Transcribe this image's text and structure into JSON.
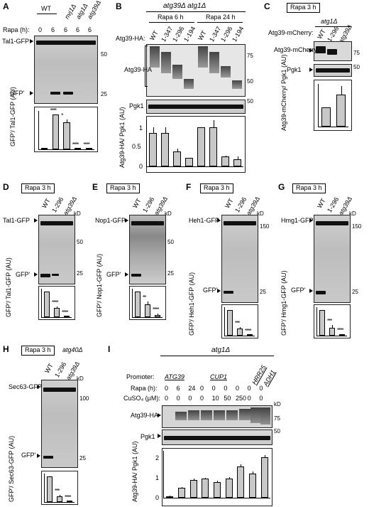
{
  "panels": {
    "A": {
      "label": "A",
      "lanes": [
        "WT",
        "nvj1Δ",
        "atg1Δ",
        "atg39Δ"
      ],
      "rapa_label": "Rapa (h):",
      "rapa": [
        "0",
        "6",
        "6",
        "6",
        "6"
      ],
      "band_top": "Tal1-GFP",
      "band_bottom": "GFP'",
      "mw": [
        "50",
        "25"
      ],
      "ylabel": "GFP'/ Tal1-GFP (AU)",
      "stars": [
        "****",
        "*",
        "****",
        "****"
      ],
      "chart_data": {
        "type": "bar",
        "categories": [
          "WT 0",
          "WT 6",
          "nvj1Δ 6",
          "atg1Δ 6",
          "atg39Δ 6"
        ],
        "values": [
          0.0,
          1.0,
          0.78,
          0.02,
          0.02
        ],
        "errors": [
          0,
          0,
          0.07,
          0,
          0
        ],
        "ylim": [
          0,
          1.1
        ]
      }
    },
    "B": {
      "label": "B",
      "title": "atg39Δ atg1Δ",
      "groups": [
        "Rapa 6 h",
        "Rapa 24 h"
      ],
      "lanes": [
        "WT",
        "1-347",
        "1-296",
        "1-194",
        "WT",
        "1-347",
        "1-296",
        "1-194"
      ],
      "row_label": "Atg39-HA:",
      "band_main": "Atg39-HA",
      "band_pgk": "Pgk1",
      "mw": [
        "75",
        "50",
        "50"
      ],
      "ylabel": "Atg39-HA/ Pgk1 (AU)",
      "yticks": [
        "0",
        "0.5",
        "1"
      ],
      "chart_data": {
        "type": "bar",
        "categories": [
          "WT 6h",
          "1-347 6h",
          "1-296 6h",
          "1-194 6h",
          "WT 24h",
          "1-347 24h",
          "1-296 24h",
          "1-194 24h"
        ],
        "values": [
          0.85,
          0.85,
          0.38,
          0.22,
          1.0,
          1.0,
          0.25,
          0.18
        ],
        "errors": [
          0.15,
          0.15,
          0.08,
          0,
          0,
          0.18,
          0.03,
          0.08
        ],
        "ylim": [
          0,
          1.2
        ]
      }
    },
    "C": {
      "label": "C",
      "rapa": "Rapa 3 h",
      "strain": "atg1Δ",
      "row_label": "Atg39-mCherry:",
      "lanes": [
        "WT",
        "1-296",
        "atg39Δ"
      ],
      "band_main": "Atg39-mCherry",
      "band_pgk": "Pgk1",
      "mw": [
        "75",
        "50"
      ],
      "ylabel": "Atg39-mCherry/ Pgk1 (AU)",
      "chart_data": {
        "type": "bar",
        "categories": [
          "WT",
          "1-296"
        ],
        "values": [
          1.0,
          1.65
        ],
        "errors": [
          0,
          0.45
        ],
        "ylim": [
          0,
          2.2
        ]
      }
    },
    "D": {
      "label": "D",
      "rapa": "Rapa 3 h",
      "lanes": [
        "WT",
        "1-296",
        "atg39Δ"
      ],
      "kd": "kD",
      "band_top": "Tal1-GFP",
      "band_bottom": "GFP'",
      "mw": [
        "50",
        "25"
      ],
      "ylabel": "GFP'/ Tal1-GFP (AU)",
      "stars": [
        "****",
        "****"
      ],
      "chart_data": {
        "type": "bar",
        "categories": [
          "WT",
          "1-296",
          "atg39Δ"
        ],
        "values": [
          1.0,
          0.35,
          0.03
        ],
        "errors": [
          0,
          0.05,
          0
        ],
        "ylim": [
          0,
          1.1
        ]
      }
    },
    "E": {
      "label": "E",
      "rapa": "Rapa 3 h",
      "lanes": [
        "WT",
        "1-296",
        "atg39Δ"
      ],
      "kd": "kD",
      "band_top": "Nop1-GFP",
      "band_bottom": "GFP'",
      "mw": [
        "50",
        "25"
      ],
      "ylabel": "GFP'/ Nop1-GFP (AU)",
      "stars": [
        "**",
        "****"
      ],
      "chart_data": {
        "type": "bar",
        "categories": [
          "WT",
          "1-296",
          "atg39Δ"
        ],
        "values": [
          1.0,
          0.5,
          0.08
        ],
        "errors": [
          0,
          0.1,
          0.05
        ],
        "ylim": [
          0,
          1.1
        ]
      }
    },
    "F": {
      "label": "F",
      "rapa": "Rapa 3 h",
      "lanes": [
        "WT",
        "1-296",
        "atg39Δ"
      ],
      "kd": "kD",
      "band_top": "Heh1-GFP",
      "band_bottom": "GFP'",
      "mw": [
        "150",
        "25"
      ],
      "ylabel": "GFP'/ Heh1-GFP (AU)",
      "stars": [
        "***",
        "****"
      ],
      "chart_data": {
        "type": "bar",
        "categories": [
          "WT",
          "1-296",
          "atg39Δ"
        ],
        "values": [
          1.0,
          0.28,
          0.03
        ],
        "errors": [
          0,
          0.06,
          0
        ],
        "ylim": [
          0,
          1.1
        ]
      }
    },
    "G": {
      "label": "G",
      "rapa": "Rapa 3 h",
      "lanes": [
        "WT",
        "1-296",
        "atg39Δ"
      ],
      "kd": "kD",
      "band_top": "Hmg1-GFP",
      "band_bottom": "GFP'",
      "mw": [
        "150",
        "25"
      ],
      "ylabel": "GFP'/ Hmg1-GFP (AU)",
      "stars": [
        "***",
        "****"
      ],
      "chart_data": {
        "type": "bar",
        "categories": [
          "WT",
          "1-296",
          "atg39Δ"
        ],
        "values": [
          1.0,
          0.3,
          0.05
        ],
        "errors": [
          0,
          0.12,
          0
        ],
        "ylim": [
          0,
          1.1
        ]
      }
    },
    "H": {
      "label": "H",
      "rapa": "Rapa 3 h",
      "strain": "atg40Δ",
      "lanes": [
        "WT",
        "1-296",
        "atg39Δ"
      ],
      "kd": "kD",
      "band_top": "Sec63-GFP",
      "band_bottom": "GFP'",
      "mw": [
        "100",
        "25"
      ],
      "ylabel": "GFP'/ Sec63-GFP (AU)",
      "stars": [
        "***",
        "****"
      ],
      "chart_data": {
        "type": "bar",
        "categories": [
          "WT",
          "1-296",
          "atg39Δ"
        ],
        "values": [
          1.0,
          0.22,
          0.03
        ],
        "errors": [
          0,
          0.05,
          0
        ],
        "ylim": [
          0,
          1.1
        ]
      }
    },
    "I": {
      "label": "I",
      "strain": "atg1Δ",
      "promoter_label": "Promoter:",
      "promoters": [
        "ATG39",
        "CUP1",
        "HRR25",
        "ADH1"
      ],
      "rapa_label": "Rapa (h):",
      "rapa": [
        "0",
        "6",
        "24",
        "0",
        "0",
        "0",
        "0",
        "0",
        "0"
      ],
      "cuso4_label": "CuSO₄ (μM):",
      "cuso4": [
        "0",
        "0",
        "0",
        "0",
        "10",
        "50",
        "250",
        "0",
        "0"
      ],
      "kd": "kD",
      "band_main": "Atg39-HA",
      "band_pgk": "Pgk1",
      "mw": [
        "75",
        "50"
      ],
      "ylabel": "Atg39-HA/ Pgk1 (AU)",
      "yticks": [
        "0",
        "1",
        "2"
      ],
      "chart_data": {
        "type": "bar",
        "categories": [
          "ATG39 0h",
          "ATG39 6h",
          "ATG39 24h",
          "CUP1 0",
          "CUP1 10",
          "CUP1 50",
          "CUP1 250",
          "HRR25",
          "ADH1"
        ],
        "values": [
          0.08,
          0.55,
          1.0,
          1.05,
          0.85,
          1.05,
          1.75,
          1.35,
          2.25
        ],
        "errors": [
          0.02,
          0.05,
          0.05,
          0.05,
          0.08,
          0.08,
          0.1,
          0.1,
          0.12
        ],
        "ylim": [
          0,
          2.6
        ]
      }
    }
  }
}
